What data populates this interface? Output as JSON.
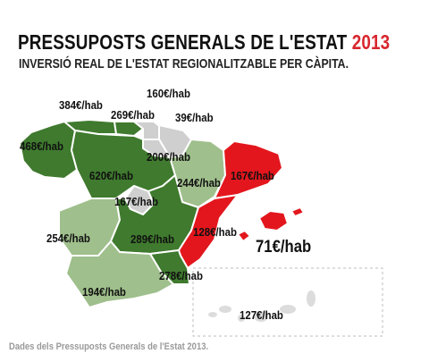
{
  "title": {
    "main": "PRESSUPOSTS GENERALS DE L'ESTAT",
    "year": "2013"
  },
  "subtitle": "INVERSIÓ REAL DE L'ESTAT REGIONALITZABLE PER CÀPITA.",
  "source": "Dades dels Pressuposts Generals de l'Estat 2013.",
  "colors": {
    "dark_green": "#3f7a2e",
    "light_green": "#9fbf8c",
    "red": "#e3161d",
    "grey": "#cfcfcf"
  },
  "regions": [
    {
      "value": "468€/hab",
      "color": "dark_green"
    },
    {
      "value": "384€/hab",
      "color": "dark_green"
    },
    {
      "value": "269€/hab",
      "color": "dark_green"
    },
    {
      "value": "160€/hab",
      "color": "grey"
    },
    {
      "value": "39€/hab",
      "color": "grey"
    },
    {
      "value": "200€/hab",
      "color": "grey"
    },
    {
      "value": "620€/hab",
      "color": "dark_green"
    },
    {
      "value": "244€/hab",
      "color": "light_green"
    },
    {
      "value": "167€/hab",
      "color": "red"
    },
    {
      "value": "167€/hab",
      "color": "grey"
    },
    {
      "value": "254€/hab",
      "color": "light_green"
    },
    {
      "value": "289€/hab",
      "color": "dark_green"
    },
    {
      "value": "128€/hab",
      "color": "red"
    },
    {
      "value": "71€/hab",
      "color": "red"
    },
    {
      "value": "194€/hab",
      "color": "light_green"
    },
    {
      "value": "278€/hab",
      "color": "dark_green"
    },
    {
      "value": "127€/hab",
      "color": "light_green"
    }
  ]
}
